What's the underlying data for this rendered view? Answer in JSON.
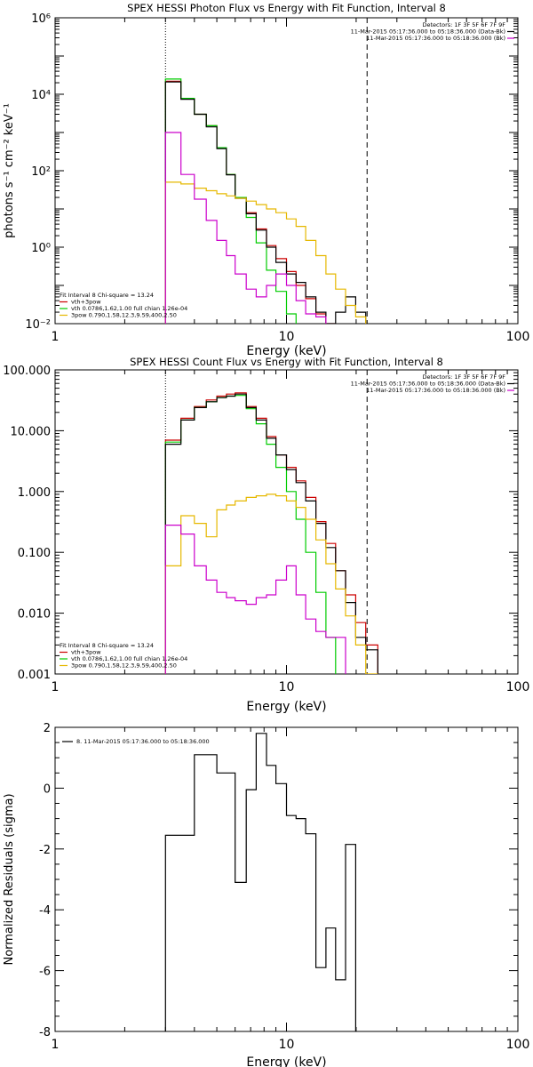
{
  "chart_data": [
    {
      "type": "line",
      "title": "SPEX HESSI Photon Flux vs Energy with Fit Function, Interval 8",
      "xlabel": "Energy (keV)",
      "ylabel": "photons s⁻¹ cm⁻² keV⁻¹",
      "xscale": "log",
      "yscale": "log",
      "xlim": [
        1,
        100
      ],
      "ylim": [
        0.01,
        1000000
      ],
      "x_ticks": [
        1,
        10,
        100
      ],
      "x_tick_labels": [
        "1",
        "10",
        "100"
      ],
      "y_ticks": [
        0.01,
        1,
        100,
        10000,
        1000000
      ],
      "y_tick_labels": [
        "10⁻²",
        "10⁰",
        "10²",
        "10⁴",
        "10⁶"
      ],
      "edges": [
        3,
        3.5,
        4,
        4.5,
        5,
        5.5,
        6,
        6.7,
        7.4,
        8.2,
        9,
        10,
        11,
        12.1,
        13.4,
        14.8,
        16.3,
        18,
        19.9,
        22
      ],
      "vlines": [
        {
          "x": 3,
          "style": "dotted"
        },
        {
          "x": 22.3,
          "style": "dashed"
        }
      ],
      "header": [
        "Detectors: 1F 3F 5F 6F 7F 9F",
        "11-Mar-2015 05:17:36.000 to 05:18:36.000 (Data-Bk)",
        "11-Mar-2015 05:17:36.000 to 05:18:36.000 (Bk)"
      ],
      "header_colors": [
        "",
        "#000000",
        "#cc00cc"
      ],
      "legend": {
        "title": "Fit Interval 8   Chi-square = 13.24",
        "entries": [
          {
            "label": "vth+3pow",
            "color": "#cc0000"
          },
          {
            "label": "vth 0.0786,1.62,1.00  full chian 1.26e-04",
            "color": "#00cc00"
          },
          {
            "label": "3pow 0.790,1.58,12.3,9.59,400,2.50",
            "color": "#e6b800"
          }
        ]
      },
      "series": [
        {
          "color": "#cc0000",
          "values": [
            22000,
            7800,
            3000,
            1500,
            400,
            80,
            20,
            8,
            3,
            1.1,
            0.5,
            0.23,
            0.1,
            0.045,
            0.018,
            0.008
          ]
        },
        {
          "color": "#00cc00",
          "values": [
            25000,
            7800,
            3000,
            1500,
            400,
            80,
            20,
            6,
            1.3,
            0.25,
            0.07,
            0.018
          ]
        },
        {
          "color": "#000000",
          "values": [
            21000,
            7400,
            3000,
            1400,
            380,
            78,
            19,
            7.5,
            2.8,
            1,
            0.4,
            0.2,
            0.12,
            0.05,
            0.02,
            0.01,
            0.02,
            0.05,
            0.02
          ]
        },
        {
          "color": "#e6b800",
          "values": [
            50,
            45,
            35,
            30,
            25,
            22,
            19,
            16,
            13,
            10,
            8,
            5.5,
            3.5,
            1.5,
            0.6,
            0.2,
            0.08,
            0.03,
            0.015
          ]
        },
        {
          "color": "#cc00cc",
          "values": [
            1000,
            80,
            18,
            5,
            1.5,
            0.6,
            0.2,
            0.08,
            0.05,
            0.1,
            0.2,
            0.1,
            0.04,
            0.018,
            0.015
          ]
        }
      ]
    },
    {
      "type": "line",
      "title": "SPEX HESSI Count Flux vs Energy with Fit Function, Interval 8",
      "xlabel": "Energy (keV)",
      "ylabel": "",
      "xscale": "log",
      "yscale": "log",
      "xlim": [
        1,
        100
      ],
      "ylim": [
        0.001,
        100
      ],
      "x_ticks": [
        1,
        10,
        100
      ],
      "x_tick_labels": [
        "1",
        "10",
        "100"
      ],
      "y_ticks": [
        0.001,
        0.01,
        0.1,
        1,
        10,
        100
      ],
      "y_tick_labels": [
        "0.001",
        "0.010",
        "0.100",
        "1.000",
        "10.000",
        "100.000"
      ],
      "edges": [
        3,
        3.5,
        4,
        4.5,
        5,
        5.5,
        6,
        6.7,
        7.4,
        8.2,
        9,
        10,
        11,
        12.1,
        13.4,
        14.8,
        16.3,
        18,
        19.9,
        22,
        24.8
      ],
      "vlines": [
        {
          "x": 3,
          "style": "dotted"
        },
        {
          "x": 22.3,
          "style": "dashed"
        }
      ],
      "header": [
        "Detectors: 1F 3F 5F 6F 7F 9F",
        "11-Mar-2015 05:17:36.000 to 05:18:36.000 (Data-Bk)",
        "11-Mar-2015 05:17:36.000 to 05:18:36.000 (Bk)"
      ],
      "header_colors": [
        "",
        "#000000",
        "#cc00cc"
      ],
      "legend": {
        "title": "Fit Interval 8   Chi-square = 13.24",
        "entries": [
          {
            "label": "vth+3pow",
            "color": "#cc0000"
          },
          {
            "label": "vth 0.0786,1.62,1.00  full chian 1.26e-04",
            "color": "#00cc00"
          },
          {
            "label": "3pow 0.790,1.58,12.3,9.59,400,2.50",
            "color": "#e6b800"
          }
        ]
      },
      "series": [
        {
          "color": "#cc0000",
          "values": [
            7,
            16,
            25,
            32,
            37,
            40,
            42,
            25,
            16,
            8,
            4,
            2.5,
            1.5,
            0.8,
            0.32,
            0.14,
            0.05,
            0.02,
            0.007,
            0.003
          ]
        },
        {
          "color": "#00cc00",
          "values": [
            6.5,
            15,
            24,
            30,
            35,
            37,
            38,
            23,
            13,
            6,
            2.5,
            1,
            0.35,
            0.1,
            0.022,
            0.004
          ]
        },
        {
          "color": "#000000",
          "values": [
            6,
            15,
            24,
            30,
            35,
            37,
            40,
            24,
            15,
            7.5,
            4,
            2.3,
            1.4,
            0.7,
            0.3,
            0.12,
            0.05,
            0.015,
            0.004,
            0.0025
          ]
        },
        {
          "color": "#e6b800",
          "values": [
            0.06,
            0.4,
            0.3,
            0.18,
            0.5,
            0.6,
            0.7,
            0.8,
            0.85,
            0.9,
            0.85,
            0.7,
            0.55,
            0.35,
            0.16,
            0.065,
            0.025,
            0.009,
            0.003,
            0.001
          ]
        },
        {
          "color": "#cc00cc",
          "values": [
            0.28,
            0.2,
            0.06,
            0.035,
            0.022,
            0.018,
            0.016,
            0.014,
            0.018,
            0.02,
            0.035,
            0.06,
            0.02,
            0.008,
            0.005,
            0.004,
            0.004
          ]
        }
      ]
    },
    {
      "type": "line",
      "title": "",
      "xlabel": "Energy (keV)",
      "ylabel": "Normalized Residuals (sigma)",
      "xscale": "log",
      "yscale": "linear",
      "xlim": [
        1,
        100
      ],
      "ylim": [
        -8,
        2
      ],
      "x_ticks": [
        1,
        10,
        100
      ],
      "x_tick_labels": [
        "1",
        "10",
        "100"
      ],
      "y_ticks": [
        -8,
        -6,
        -4,
        -2,
        0,
        2
      ],
      "y_tick_labels": [
        "-8",
        "-6",
        "-4",
        "-2",
        "0",
        "2"
      ],
      "edges": [
        3,
        3.5,
        4,
        4.5,
        5,
        5.5,
        6,
        6.7,
        7.4,
        8.2,
        9,
        10,
        11,
        12.1,
        13.4,
        14.8,
        16.3,
        18,
        19.9,
        22
      ],
      "vlines": [],
      "header": [],
      "header_colors": [],
      "legend": {
        "title": "",
        "entries": [
          {
            "label": "8. 11-Mar-2015 05:17:36.000 to 05:18:36.000",
            "color": "#000000"
          }
        ]
      },
      "series": [
        {
          "color": "#000000",
          "values": [
            -1.55,
            -1.55,
            1.1,
            1.1,
            0.5,
            0.5,
            -3.1,
            -0.05,
            1.8,
            0.75,
            0.15,
            -0.9,
            -1.0,
            -1.5,
            -5.9,
            -4.6,
            -6.3,
            -1.85
          ]
        }
      ]
    }
  ]
}
